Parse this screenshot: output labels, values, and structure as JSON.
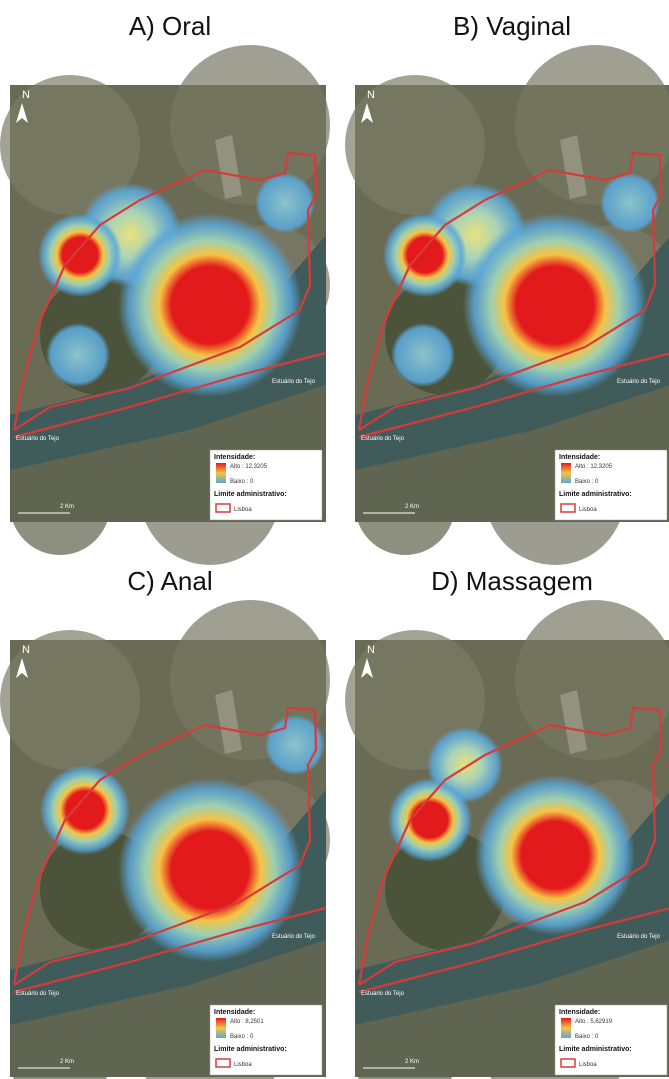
{
  "panels": [
    {
      "title": "A) Oral",
      "legend": {
        "heading": "Intensidade:",
        "high": "Alto : 12,3205",
        "low": "Baixo : 0",
        "boundary_heading": "Limite administrativo:",
        "boundary": "Lisboa"
      },
      "labels": {
        "north": "N",
        "river_east": "Estuário do Tejo",
        "river_west": "Estuário do Tejo",
        "scale": "2 Km"
      }
    },
    {
      "title": "B) Vaginal",
      "legend": {
        "heading": "Intensidade:",
        "high": "Alto : 12,3205",
        "low": "Baixo : 0",
        "boundary_heading": "Limite administrativo:",
        "boundary": "Lisboa"
      },
      "labels": {
        "north": "N",
        "river_east": "Estuário do Tejo",
        "river_west": "Estuário do Tejo",
        "scale": "2 Km"
      }
    },
    {
      "title": "C) Anal",
      "legend": {
        "heading": "Intensidade:",
        "high": "Alto : 8,2501",
        "low": "Baixo : 0",
        "boundary_heading": "Limite administrativo:",
        "boundary": "Lisboa"
      },
      "labels": {
        "north": "N",
        "river_east": "Estuário do Tejo",
        "river_west": "Estuário do Tejo",
        "scale": "2 Km"
      }
    },
    {
      "title": "D) Massagem",
      "legend": {
        "heading": "Intensidade:",
        "high": "Alto : 5,62919",
        "low": "Baixo : 0",
        "boundary_heading": "Limite administrativo:",
        "boundary": "Lisboa"
      },
      "labels": {
        "north": "N",
        "river_east": "Estuário do Tejo",
        "river_west": "Estuário do Tejo",
        "scale": "2 Km"
      }
    }
  ]
}
